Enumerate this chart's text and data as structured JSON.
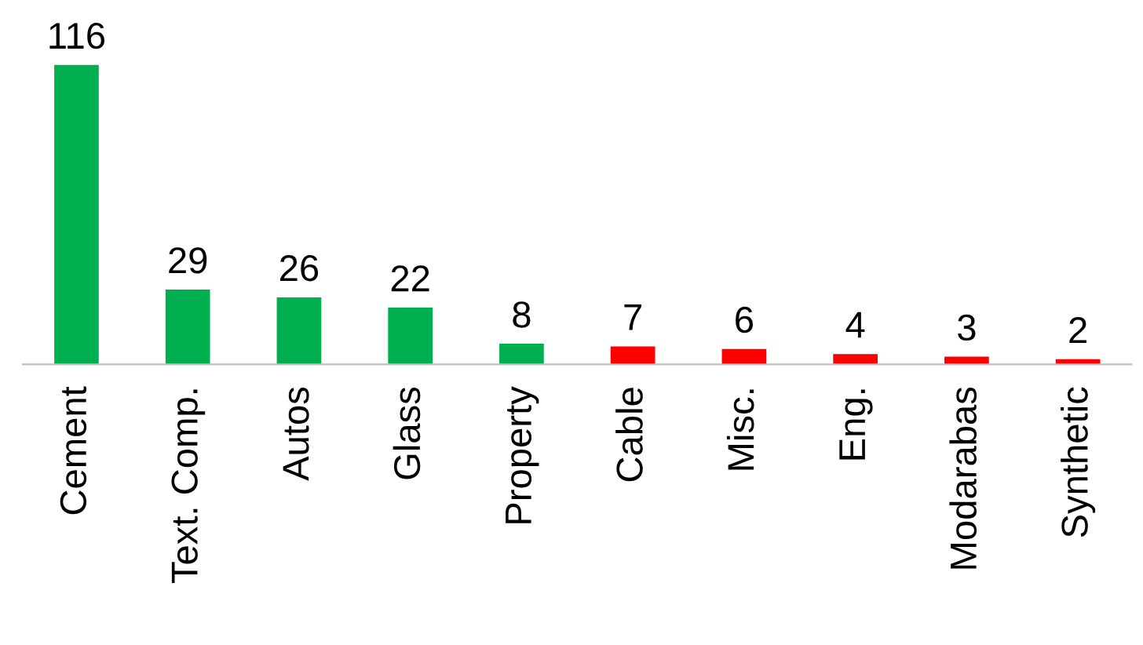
{
  "chart_data": {
    "type": "bar",
    "categories": [
      "Cement",
      "Text. Comp.",
      "Autos",
      "Glass",
      "Property",
      "Cable",
      "Misc.",
      "Eng.",
      "Modarabas",
      "Synthetic"
    ],
    "values": [
      116,
      29,
      26,
      22,
      8,
      7,
      6,
      4,
      3,
      2
    ],
    "colors": [
      "#00b050",
      "#00b050",
      "#00b050",
      "#00b050",
      "#00b050",
      "#ff0000",
      "#ff0000",
      "#ff0000",
      "#ff0000",
      "#ff0000"
    ],
    "data_labels": true,
    "grid": false,
    "legend": false
  }
}
